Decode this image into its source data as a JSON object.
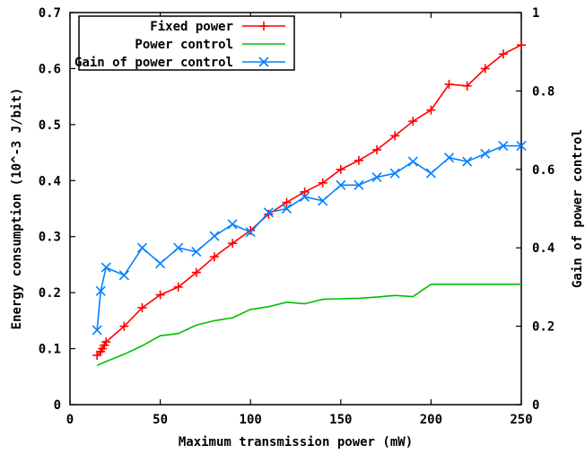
{
  "chart_data": {
    "type": "line",
    "xlabel": "Maximum transmission power (mW)",
    "ylabel_left": "Energy consumption (10^-3 J/bit)",
    "ylabel_right": "Gain of power control",
    "xlim": [
      0,
      250
    ],
    "ylim_left": [
      0,
      0.7
    ],
    "ylim_right": [
      0,
      1
    ],
    "x_ticks": [
      0,
      50,
      100,
      150,
      200,
      250
    ],
    "y_left_ticks": [
      0,
      0.1,
      0.2,
      0.3,
      0.4,
      0.5,
      0.6,
      0.7
    ],
    "y_right_ticks": [
      0,
      0.2,
      0.4,
      0.6,
      0.8,
      1
    ],
    "x_tick_labels": [
      "0",
      "50",
      "100",
      "150",
      "200",
      "250"
    ],
    "y_left_tick_labels": [
      "0",
      "0.1",
      "0.2",
      "0.3",
      "0.4",
      "0.5",
      "0.6",
      "0.7"
    ],
    "y_right_tick_labels": [
      "0",
      "0.2",
      "0.4",
      "0.6",
      "0.8",
      "1"
    ],
    "legend_position": "top-left",
    "grid": false,
    "series": [
      {
        "name": "Fixed power",
        "axis": "left",
        "color": "#ff0000",
        "marker": "plus",
        "x": [
          15,
          17,
          18,
          19,
          20,
          30,
          40,
          50,
          60,
          70,
          80,
          90,
          100,
          110,
          120,
          130,
          140,
          150,
          160,
          170,
          180,
          190,
          200,
          210,
          220,
          230,
          240,
          250
        ],
        "y": [
          0.088,
          0.095,
          0.1,
          0.106,
          0.112,
          0.14,
          0.173,
          0.196,
          0.21,
          0.236,
          0.264,
          0.288,
          0.311,
          0.34,
          0.361,
          0.38,
          0.396,
          0.42,
          0.436,
          0.455,
          0.48,
          0.506,
          0.526,
          0.572,
          0.569,
          0.6,
          0.626,
          0.642
        ]
      },
      {
        "name": "Power control",
        "axis": "left",
        "color": "#00c000",
        "marker": "none",
        "x": [
          15,
          20,
          30,
          40,
          50,
          60,
          70,
          80,
          90,
          100,
          110,
          120,
          130,
          140,
          150,
          160,
          170,
          180,
          190,
          200,
          210,
          220,
          230,
          240,
          250
        ],
        "y": [
          0.07,
          0.077,
          0.09,
          0.105,
          0.123,
          0.127,
          0.142,
          0.15,
          0.155,
          0.17,
          0.175,
          0.183,
          0.18,
          0.188,
          0.189,
          0.19,
          0.192,
          0.195,
          0.193,
          0.215,
          0.215,
          0.215,
          0.215,
          0.215,
          0.215
        ]
      },
      {
        "name": "Gain of power control",
        "axis": "right",
        "color": "#0080ff",
        "marker": "x",
        "x": [
          15,
          17,
          20,
          30,
          40,
          50,
          60,
          70,
          80,
          90,
          100,
          110,
          120,
          130,
          140,
          150,
          160,
          170,
          180,
          190,
          200,
          210,
          220,
          230,
          240,
          250
        ],
        "y": [
          0.19,
          0.29,
          0.35,
          0.33,
          0.4,
          0.36,
          0.4,
          0.39,
          0.43,
          0.46,
          0.44,
          0.49,
          0.5,
          0.53,
          0.52,
          0.56,
          0.56,
          0.58,
          0.59,
          0.62,
          0.59,
          0.63,
          0.62,
          0.64,
          0.66,
          0.66
        ]
      }
    ]
  }
}
